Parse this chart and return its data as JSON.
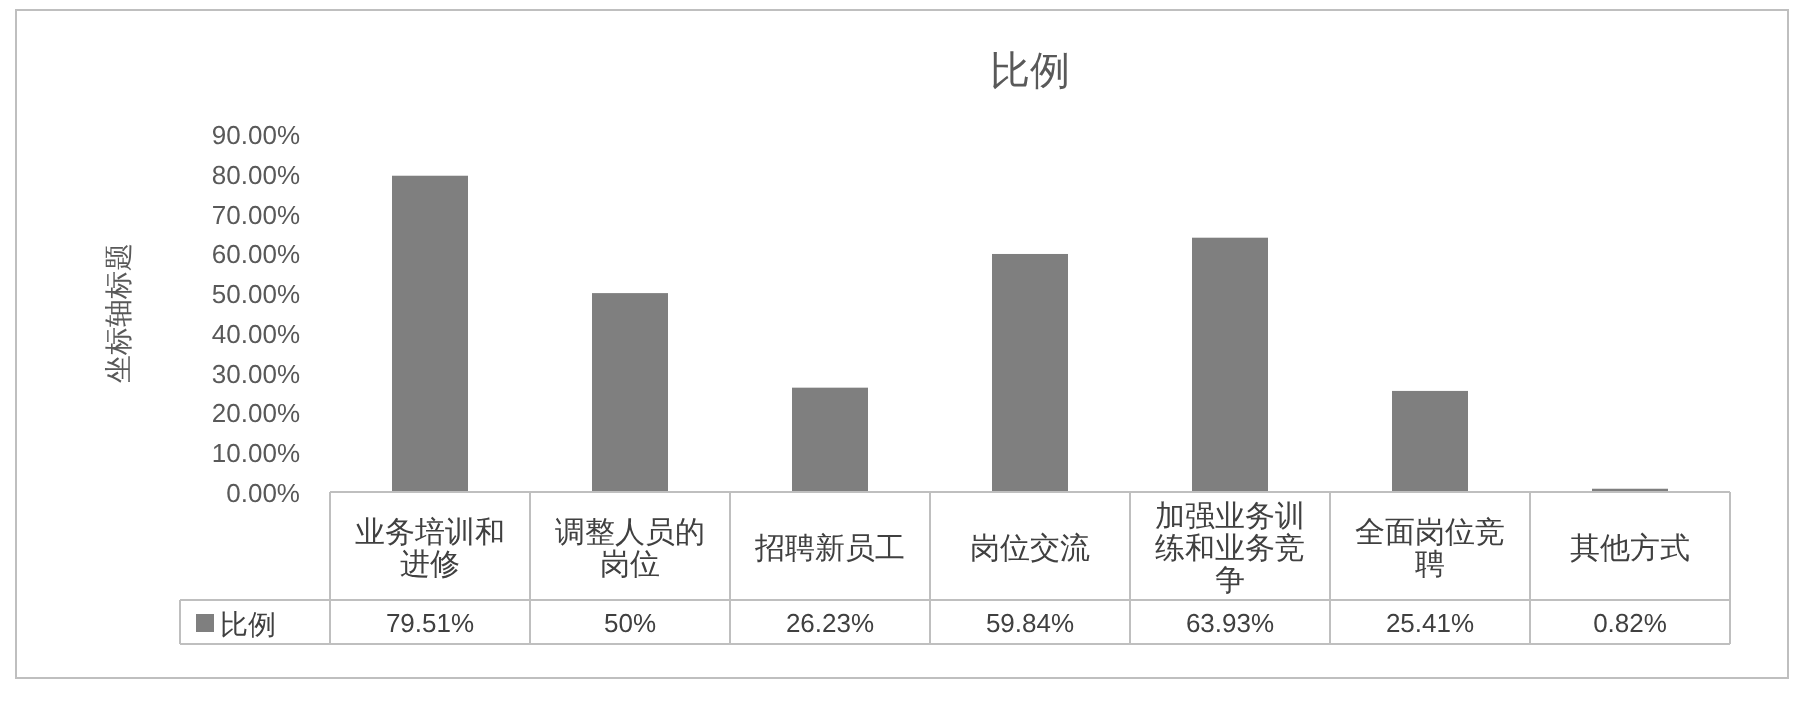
{
  "chart_data": {
    "type": "bar",
    "title": "比例",
    "ylabel": "坐标轴标题",
    "categories": [
      "业务培训和进修",
      "调整人员的岗位",
      "招聘新员工",
      "岗位交流",
      "加强业务训练和业务竞争",
      "全面岗位竞聘",
      "其他方式"
    ],
    "series": [
      {
        "name": "比例",
        "color": "#7f7f7f",
        "values": [
          79.51,
          50,
          26.23,
          59.84,
          63.93,
          25.41,
          0.82
        ],
        "value_labels": [
          "79.51%",
          "50%",
          "26.23%",
          "59.84%",
          "63.93%",
          "25.41%",
          "0.82%"
        ]
      }
    ],
    "ylim": [
      0,
      90
    ],
    "yticks": [
      {
        "value": 0,
        "label": "0.00%"
      },
      {
        "value": 10,
        "label": "10.00%"
      },
      {
        "value": 20,
        "label": "20.00%"
      },
      {
        "value": 30,
        "label": "30.00%"
      },
      {
        "value": 40,
        "label": "40.00%"
      },
      {
        "value": 50,
        "label": "50.00%"
      },
      {
        "value": 60,
        "label": "60.00%"
      },
      {
        "value": 70,
        "label": "70.00%"
      },
      {
        "value": 80,
        "label": "80.00%"
      },
      {
        "value": 90,
        "label": "90.00%"
      }
    ],
    "legend": "bottom"
  }
}
